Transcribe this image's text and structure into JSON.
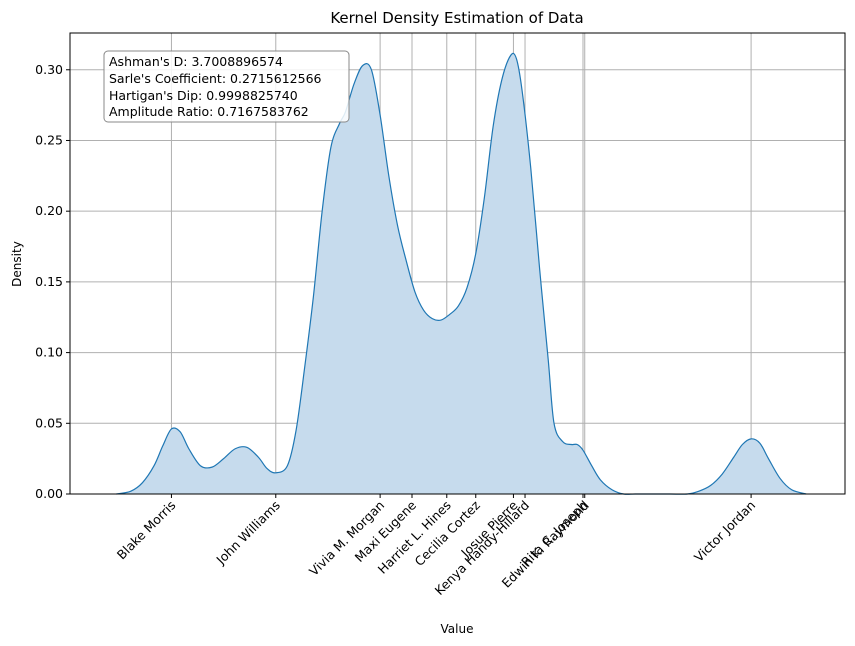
{
  "chart_data": {
    "type": "area",
    "title": "Kernel Density Estimation of Data",
    "xlabel": "Value",
    "ylabel": "Density",
    "ylim": [
      0,
      0.326
    ],
    "yticks": [
      "0.00",
      "0.05",
      "0.10",
      "0.15",
      "0.20",
      "0.25",
      "0.30"
    ],
    "ytick_values": [
      0,
      0.05,
      0.1,
      0.15,
      0.2,
      0.25,
      0.3
    ],
    "grid": true,
    "fill_color": "#c6dbed",
    "line_color": "#1f77b4",
    "stats": [
      "Ashman's D: 3.7008896574",
      "Sarle's Coefficient: 0.2715612566",
      "Hartigan's Dip: 0.9998825740",
      "Amplitude Ratio: 0.7167583762"
    ],
    "categories": [
      {
        "label": "Blake Morris",
        "x": 2.0
      },
      {
        "label": "John Williams",
        "x": 3.8
      },
      {
        "label": "Vivia M. Morgan",
        "x": 5.6
      },
      {
        "label": "Maxi Eugene",
        "x": 6.15
      },
      {
        "label": "Harriet L. Hines",
        "x": 6.75
      },
      {
        "label": "Cecilia Cortez",
        "x": 7.25
      },
      {
        "label": "Josue Pierre",
        "x": 7.9
      },
      {
        "label": "Kenya Handy-Hillard",
        "x": 8.1
      },
      {
        "label": "Rita C. Joseph",
        "x": 9.1
      },
      {
        "label": "Edwin K. Raymond",
        "x": 9.13
      },
      {
        "label": "Victor Jordan",
        "x": 12.0
      }
    ],
    "xlim": [
      0.25,
      13.62
    ],
    "density_curve": {
      "x": [
        1.05,
        1.3,
        1.5,
        1.7,
        1.85,
        2.0,
        2.15,
        2.3,
        2.5,
        2.7,
        2.9,
        3.1,
        3.3,
        3.5,
        3.65,
        3.8,
        4.0,
        4.15,
        4.3,
        4.45,
        4.6,
        4.75,
        4.9,
        5.0,
        5.15,
        5.3,
        5.45,
        5.6,
        5.75,
        5.9,
        6.05,
        6.2,
        6.35,
        6.5,
        6.65,
        6.8,
        6.95,
        7.1,
        7.25,
        7.4,
        7.55,
        7.7,
        7.85,
        7.95,
        8.05,
        8.2,
        8.35,
        8.5,
        8.6,
        8.75,
        8.9,
        9.0,
        9.1,
        9.25,
        9.4,
        9.6,
        9.8,
        10.0,
        10.3,
        10.6,
        10.9,
        11.1,
        11.3,
        11.5,
        11.7,
        11.85,
        12.0,
        12.15,
        12.3,
        12.5,
        12.7,
        12.95
      ],
      "y": [
        0.0,
        0.002,
        0.008,
        0.02,
        0.034,
        0.046,
        0.044,
        0.032,
        0.02,
        0.019,
        0.025,
        0.032,
        0.033,
        0.026,
        0.018,
        0.015,
        0.02,
        0.045,
        0.09,
        0.14,
        0.2,
        0.245,
        0.262,
        0.27,
        0.29,
        0.303,
        0.3,
        0.268,
        0.225,
        0.19,
        0.165,
        0.143,
        0.13,
        0.124,
        0.123,
        0.127,
        0.133,
        0.146,
        0.17,
        0.21,
        0.26,
        0.293,
        0.31,
        0.308,
        0.285,
        0.23,
        0.16,
        0.095,
        0.05,
        0.037,
        0.035,
        0.035,
        0.031,
        0.02,
        0.01,
        0.003,
        0.0,
        0.0,
        0.0,
        0.0,
        0.0,
        0.002,
        0.006,
        0.014,
        0.026,
        0.035,
        0.039,
        0.036,
        0.025,
        0.011,
        0.003,
        0.0
      ]
    }
  }
}
